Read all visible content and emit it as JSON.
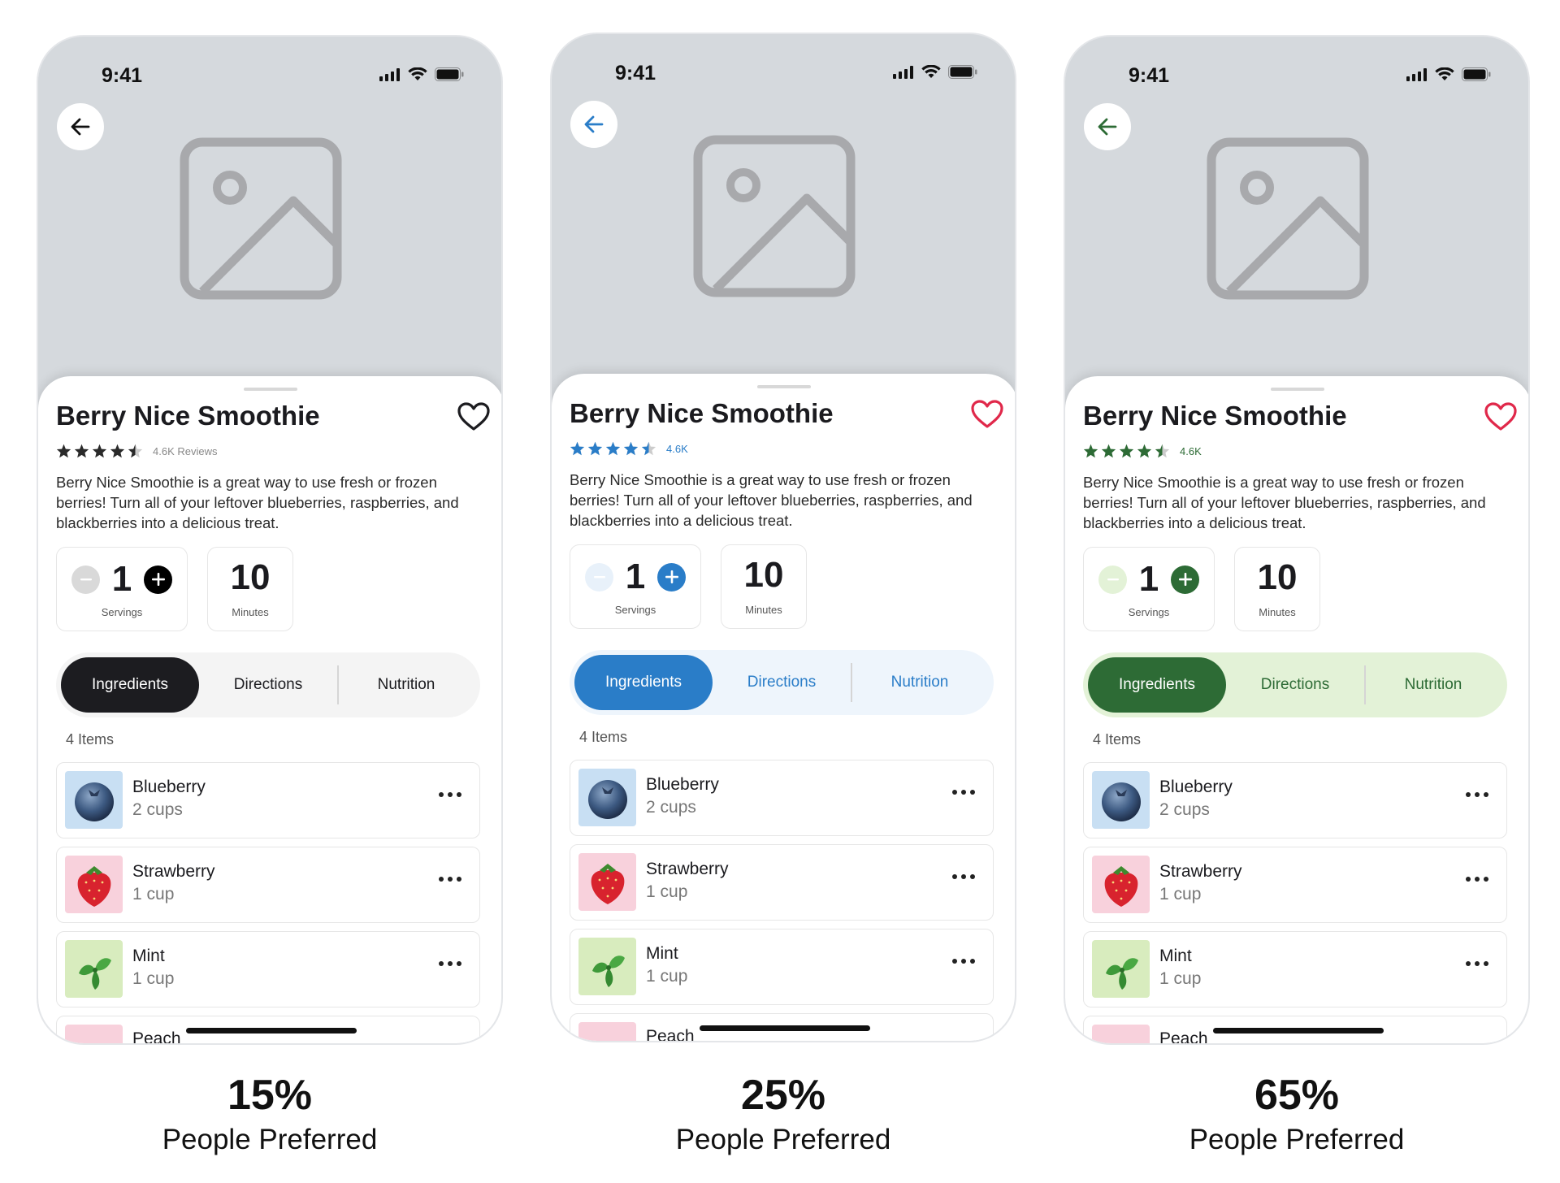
{
  "variants": [
    {
      "status_time": "9:41",
      "title": "Berry Nice Smoothie",
      "rating_text": "4.6K Reviews",
      "rating_value": 4.5,
      "description": "Berry Nice Smoothie is a great way to use fresh or frozen berries! Turn all of your leftover blueberries, raspberries, and blackberries into a delicious treat.",
      "servings_value": "1",
      "servings_label": "Servings",
      "minutes_value": "10",
      "minutes_label": "Minutes",
      "tabs": [
        "Ingredients",
        "Directions",
        "Nutrition"
      ],
      "items_count": "4 Items",
      "ingredients": [
        {
          "name": "Blueberry",
          "qty": "2 cups"
        },
        {
          "name": "Strawberry",
          "qty": "1 cup"
        },
        {
          "name": "Mint",
          "qty": "1 cup"
        },
        {
          "name": "Peach",
          "qty": ""
        }
      ],
      "percent": "15%",
      "preferred_label": "People Preferred",
      "colors": {
        "accent": "#1c1c20",
        "tab_track": "#f4f4f4",
        "tab_inactive_text": "#1c1c20",
        "star": "#2a2a2a",
        "heart": "#1c1c20",
        "minus_bg": "#d9d9d9",
        "rating_text": "#888888"
      }
    },
    {
      "status_time": "9:41",
      "title": "Berry Nice Smoothie",
      "rating_text": "4.6K",
      "rating_value": 4.5,
      "description": "Berry Nice Smoothie is a great way to use fresh or frozen berries! Turn all of your leftover blueberries, raspberries, and blackberries into a delicious treat.",
      "servings_value": "1",
      "servings_label": "Servings",
      "minutes_value": "10",
      "minutes_label": "Minutes",
      "tabs": [
        "Ingredients",
        "Directions",
        "Nutrition"
      ],
      "items_count": "4 Items",
      "ingredients": [
        {
          "name": "Blueberry",
          "qty": "2 cups"
        },
        {
          "name": "Strawberry",
          "qty": "1 cup"
        },
        {
          "name": "Mint",
          "qty": "1 cup"
        },
        {
          "name": "Peach",
          "qty": ""
        }
      ],
      "percent": "25%",
      "preferred_label": "People Preferred",
      "colors": {
        "accent": "#2a7dc8",
        "tab_track": "#eef5fc",
        "tab_inactive_text": "#2a7dc8",
        "star": "#2a7dc8",
        "heart": "#e0284a",
        "minus_bg": "#e8f1fa",
        "rating_text": "#2a7dc8"
      }
    },
    {
      "status_time": "9:41",
      "title": "Berry Nice Smoothie",
      "rating_text": "4.6K",
      "rating_value": 4.5,
      "description": "Berry Nice Smoothie is a great way to use fresh or frozen berries! Turn all of your leftover blueberries, raspberries, and blackberries into a delicious treat.",
      "servings_value": "1",
      "servings_label": "Servings",
      "minutes_value": "10",
      "minutes_label": "Minutes",
      "tabs": [
        "Ingredients",
        "Directions",
        "Nutrition"
      ],
      "items_count": "4 Items",
      "ingredients": [
        {
          "name": "Blueberry",
          "qty": "2 cups"
        },
        {
          "name": "Strawberry",
          "qty": "1 cup"
        },
        {
          "name": "Mint",
          "qty": "1 cup"
        },
        {
          "name": "Peach",
          "qty": ""
        }
      ],
      "percent": "65%",
      "preferred_label": "People Preferred",
      "colors": {
        "accent": "#2d6b35",
        "tab_track": "#e3f2d7",
        "tab_inactive_text": "#2d6b35",
        "star": "#2d6b35",
        "heart": "#e0284a",
        "minus_bg": "#e3f2d7",
        "rating_text": "#2d6b35"
      }
    }
  ]
}
